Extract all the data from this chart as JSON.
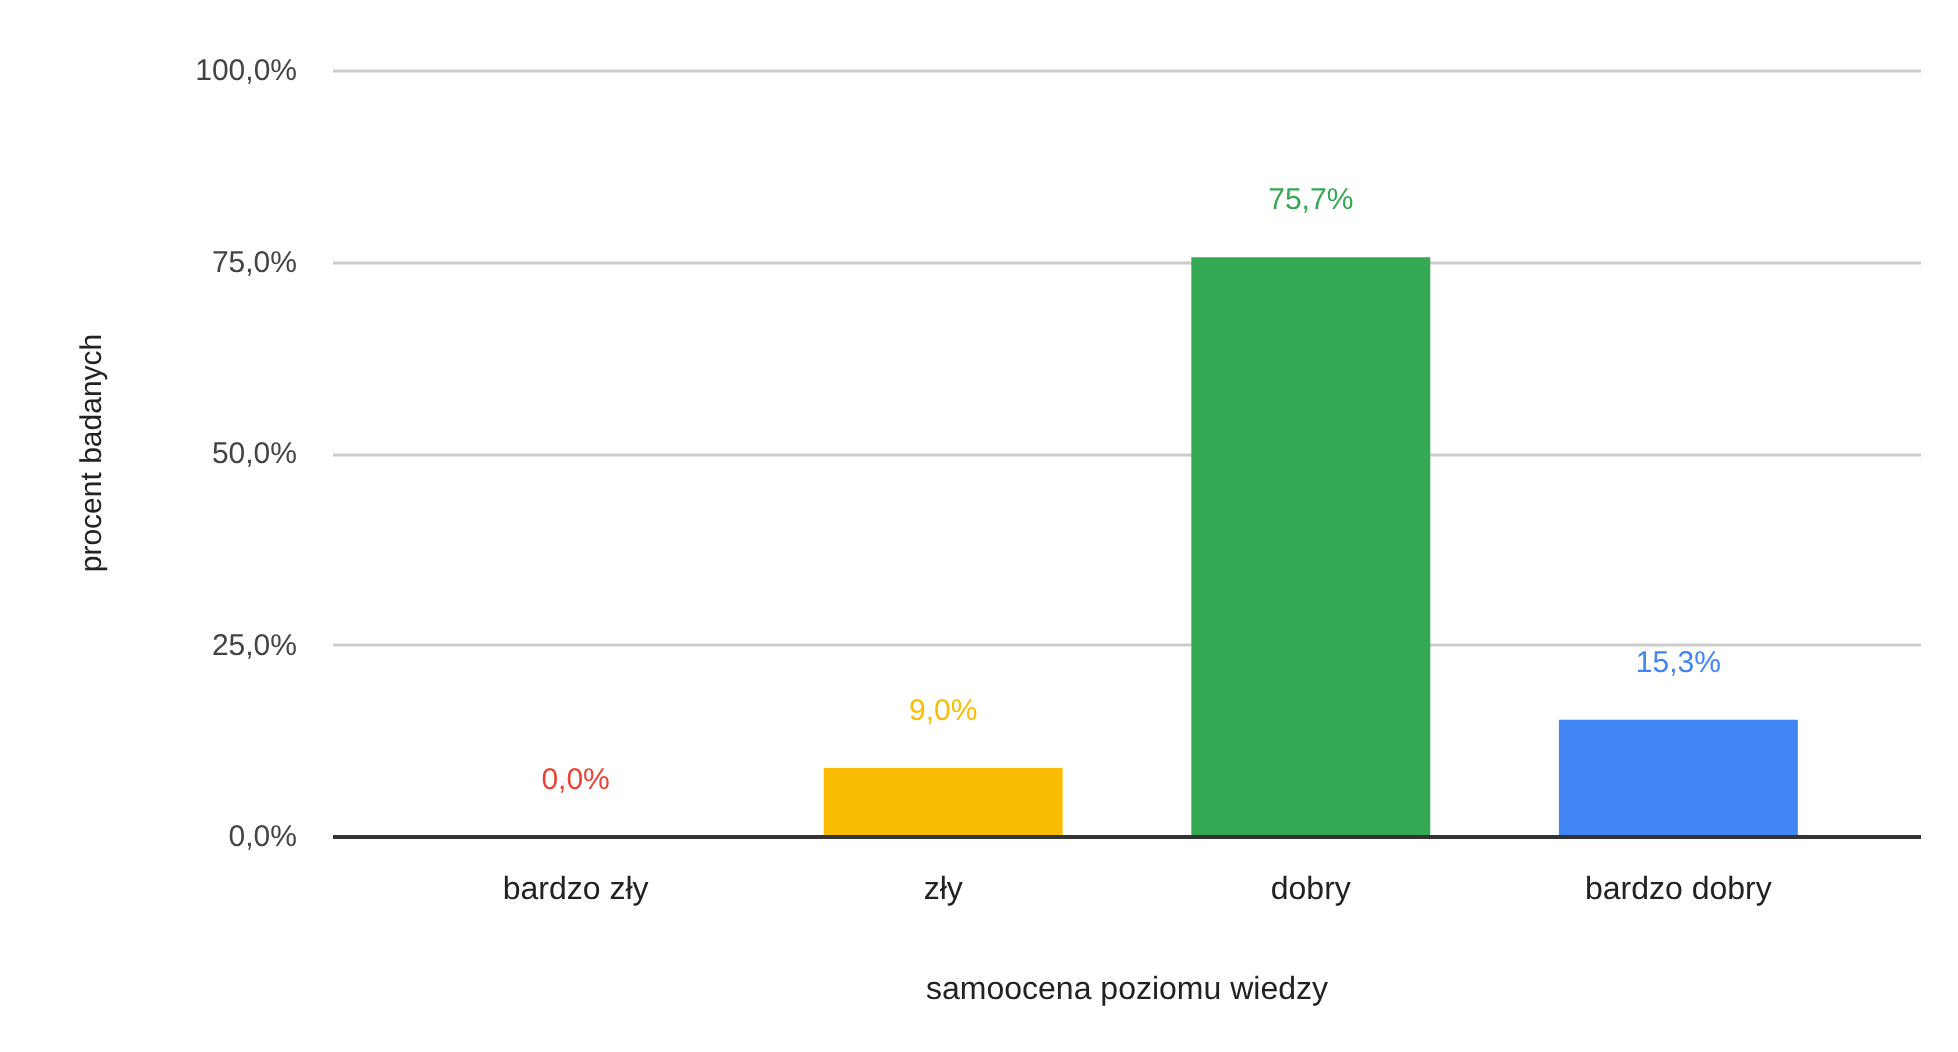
{
  "chart_data": {
    "type": "bar",
    "xlabel": "samoocena poziomu wiedzy",
    "ylabel": "procent badanych",
    "categories": [
      "bardzo zły",
      "zły",
      "dobry",
      "bardzo dobry"
    ],
    "values": [
      0.0,
      9.0,
      75.7,
      15.3
    ],
    "colors": [
      "#ea4335",
      "#fbbc04",
      "#34a853",
      "#4285f4"
    ],
    "value_labels": [
      "0,0%",
      "9,0%",
      "75,7%",
      "15,3%"
    ],
    "ylim": [
      0,
      100
    ],
    "yticks": [
      {
        "value": 0,
        "label": "0,0%"
      },
      {
        "value": 25,
        "label": "25,0%"
      },
      {
        "value": 50,
        "label": "50,0%"
      },
      {
        "value": 75,
        "label": "75,0%"
      },
      {
        "value": 100,
        "label": "100,0%"
      }
    ],
    "grid": "y"
  }
}
